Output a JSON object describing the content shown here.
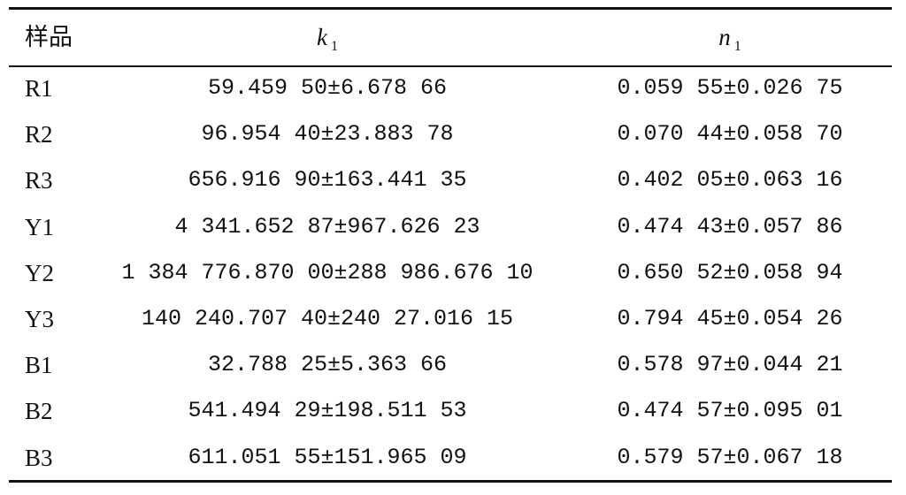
{
  "table": {
    "header": {
      "sample": "样品",
      "k": {
        "symbol": "k",
        "subscript": "1"
      },
      "n": {
        "symbol": "n",
        "subscript": "1"
      }
    },
    "rows": [
      [
        "R1",
        "59.459 50±6.678 66",
        "0.059 55±0.026 75"
      ],
      [
        "R2",
        "96.954 40±23.883 78",
        "0.070 44±0.058 70"
      ],
      [
        "R3",
        "656.916 90±163.441 35",
        "0.402 05±0.063 16"
      ],
      [
        "Y1",
        "4 341.652 87±967.626 23",
        "0.474 43±0.057 86"
      ],
      [
        "Y2",
        "1 384 776.870 00±288 986.676 10",
        "0.650 52±0.058 94"
      ],
      [
        "Y3",
        "140 240.707 40±240 27.016 15",
        "0.794 45±0.054 26"
      ],
      [
        "B1",
        "32.788 25±5.363 66",
        "0.578 97±0.044 21"
      ],
      [
        "B2",
        "541.494 29±198.511 53",
        "0.474 57±0.095 01"
      ],
      [
        "B3",
        "611.051 55±151.965 09",
        "0.579 57±0.067 18"
      ]
    ]
  }
}
